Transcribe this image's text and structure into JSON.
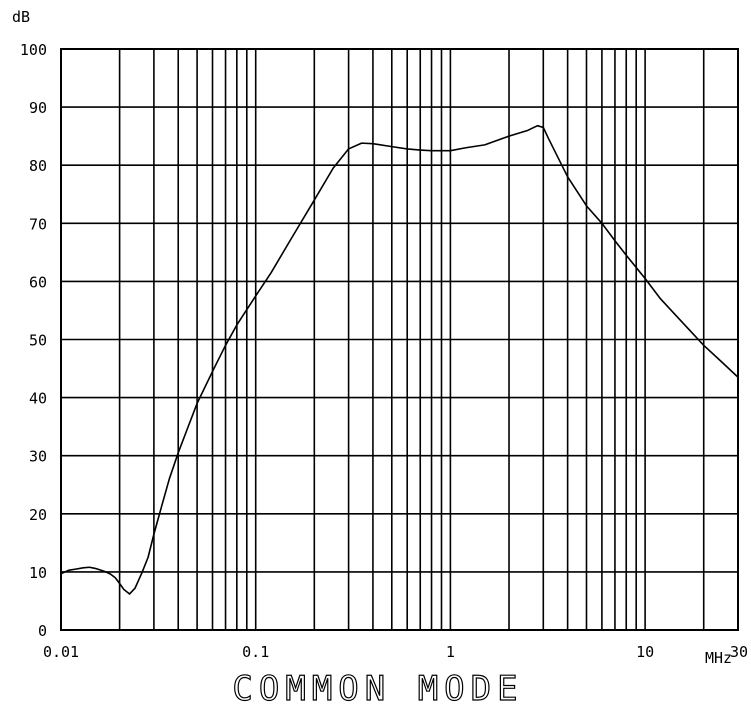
{
  "chart_data": {
    "type": "line",
    "title": "COMMON MODE",
    "xlabel": "MHz",
    "ylabel": "dB",
    "x_scale": "log",
    "xlim": [
      0.01,
      30
    ],
    "ylim": [
      0,
      100
    ],
    "grid": true,
    "x_ticks": [
      0.01,
      0.1,
      1,
      10,
      30
    ],
    "x_tick_labels": [
      "0.01",
      "0.1",
      "1",
      "10",
      "30"
    ],
    "y_ticks": [
      0,
      10,
      20,
      30,
      40,
      50,
      60,
      70,
      80,
      90,
      100
    ],
    "y_tick_labels": [
      "0",
      "10",
      "20",
      "30",
      "40",
      "50",
      "60",
      "70",
      "80",
      "90",
      "100"
    ],
    "series": [
      {
        "color": "#000000",
        "x": [
          0.01,
          0.0105,
          0.011,
          0.012,
          0.013,
          0.014,
          0.015,
          0.016,
          0.017,
          0.018,
          0.019,
          0.02,
          0.021,
          0.0225,
          0.024,
          0.026,
          0.028,
          0.03,
          0.033,
          0.036,
          0.04,
          0.045,
          0.05,
          0.06,
          0.07,
          0.08,
          0.1,
          0.12,
          0.15,
          0.2,
          0.25,
          0.3,
          0.35,
          0.4,
          0.5,
          0.6,
          0.7,
          0.8,
          1,
          1.2,
          1.5,
          2,
          2.5,
          2.8,
          3,
          3.2,
          4,
          5,
          6,
          7,
          8,
          10,
          12,
          15,
          20,
          25,
          30
        ],
        "y": [
          9.7,
          10.0,
          10.3,
          10.5,
          10.7,
          10.8,
          10.6,
          10.3,
          10.0,
          9.6,
          9.0,
          8.0,
          7.0,
          6.2,
          7.2,
          9.8,
          12.5,
          16.5,
          21.5,
          26.0,
          30.5,
          35.0,
          39.0,
          44.5,
          49.0,
          52.5,
          57.5,
          61.5,
          67.0,
          74.0,
          79.5,
          82.8,
          83.8,
          83.7,
          83.2,
          82.8,
          82.6,
          82.5,
          82.5,
          83.0,
          83.5,
          85.0,
          86.0,
          86.8,
          86.5,
          84.5,
          78.0,
          73.0,
          70.0,
          67.0,
          64.5,
          60.5,
          57.0,
          53.5,
          49.0,
          46.0,
          43.5
        ]
      }
    ]
  }
}
